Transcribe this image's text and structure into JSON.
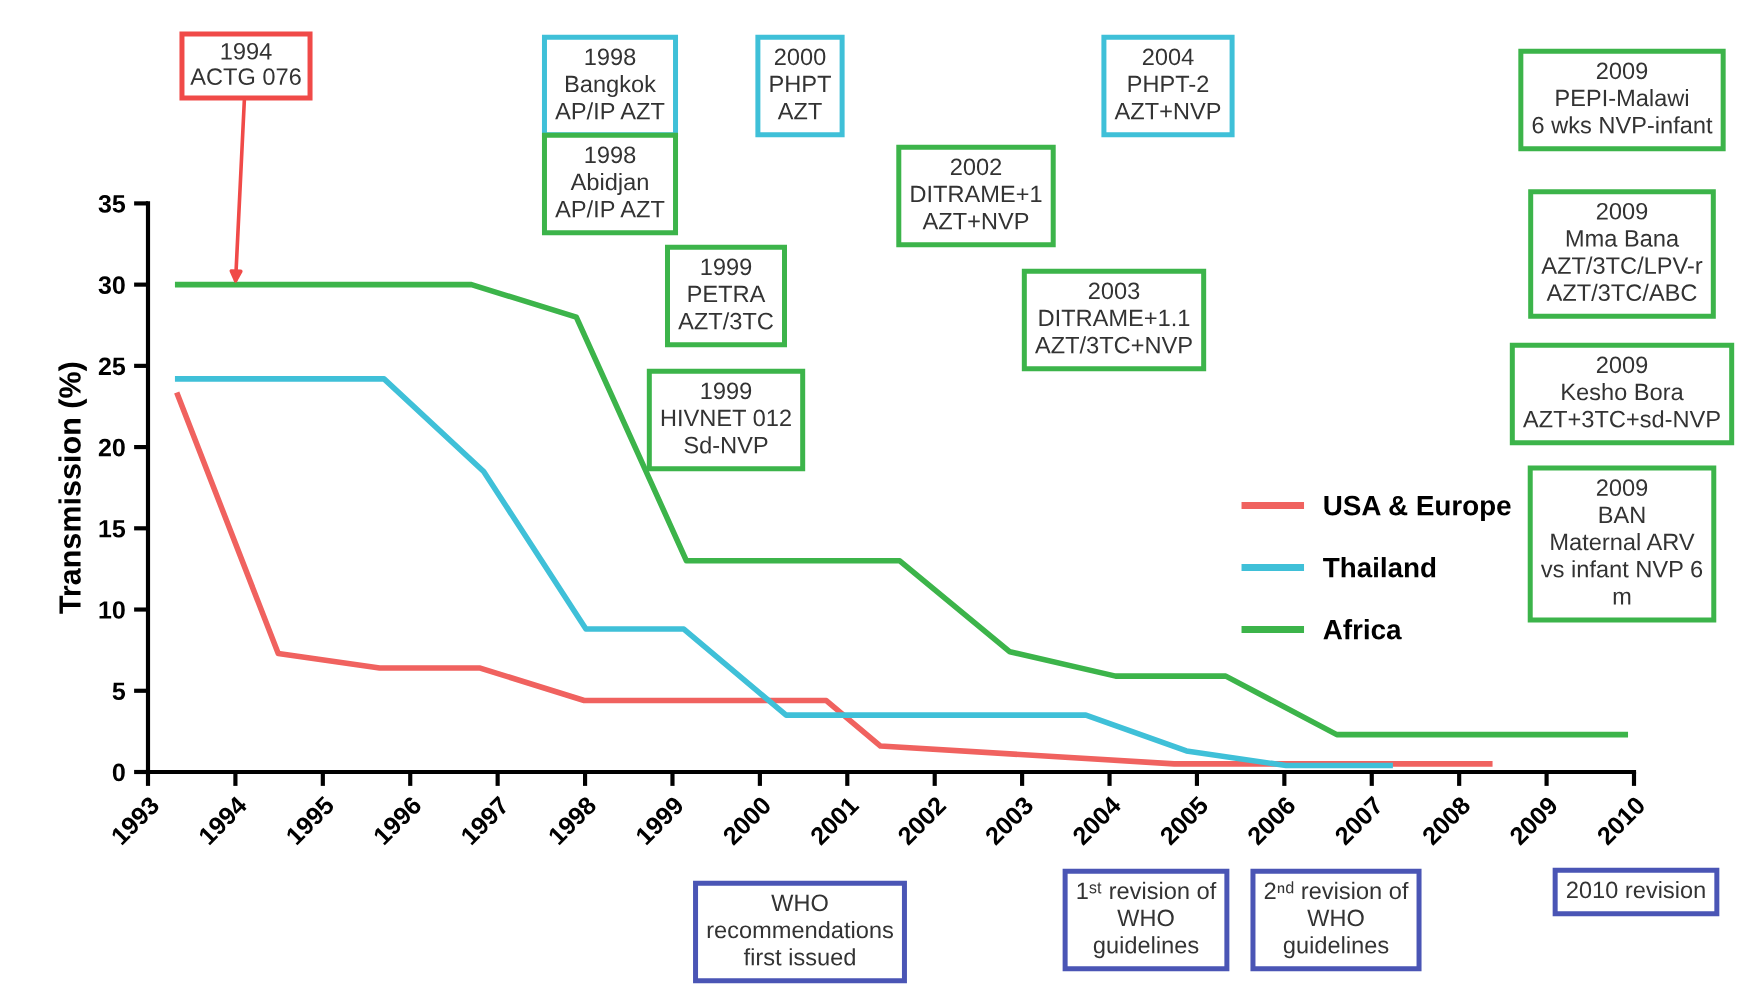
{
  "chart_data": {
    "type": "line",
    "ylabel": "Transmission (%)",
    "xlim": [
      1993,
      2010
    ],
    "xticks": [
      1993,
      1994,
      1995,
      1996,
      1997,
      1998,
      1999,
      2000,
      2001,
      2002,
      2003,
      2004,
      2005,
      2006,
      2007,
      2008,
      2009,
      2010
    ],
    "ylim": [
      0,
      35
    ],
    "yticks": [
      0,
      5,
      10,
      15,
      20,
      25,
      30,
      35
    ],
    "grid": false,
    "legend": "right",
    "marker": "none",
    "line_style": "solid",
    "series": [
      {
        "name": "USA & Europe",
        "color": "#f0625f",
        "x": [
          1993.34,
          1994.49,
          1995.65,
          1996.8,
          1997.99,
          2000.76,
          2001.38,
          2004.74,
          2008.35
        ],
        "values": [
          23.2,
          7.3,
          6.4,
          6.4,
          4.4,
          4.4,
          1.6,
          0.5,
          0.5
        ]
      },
      {
        "name": "Thailand",
        "color": "#3fc0d8",
        "x": [
          1993.34,
          1995.7,
          1996.84,
          1998.01,
          1999.13,
          2000.3,
          2003.73,
          2004.88,
          2006.02,
          2007.21
        ],
        "values": [
          24.2,
          24.2,
          18.5,
          8.8,
          8.8,
          3.5,
          3.5,
          1.3,
          0.4,
          0.4
        ]
      },
      {
        "name": "Africa",
        "color": "#3cb44a",
        "x": [
          1993.34,
          1996.7,
          1997.9,
          1999.16,
          2001.6,
          2002.86,
          2004.07,
          2005.33,
          2006.6,
          2009.9
        ],
        "values": [
          30,
          30,
          28,
          13,
          13,
          7.4,
          5.9,
          5.9,
          2.3,
          2.3
        ]
      }
    ],
    "annotations": [
      {
        "text": "1994\nACTG 076",
        "x": 1994,
        "y": 30
      },
      "1998\nBangkok\nAP/IP AZT",
      "2000\nPHPT\nAZT",
      "2004\nPHPT-2\nAZT+NVP",
      "1998\nAbidjan\nAP/IP AZT",
      "1999\nPETRA\nAZT/3TC",
      "1999\nHIVNET 012\nSd-NVP",
      "2002\nDITRAME+1\nAZT+NVP",
      "2003\nDITRAME+1.1\nAZT/3TC+NVP",
      "2009\nPEPI-Malawi\n6 wks NVP-infant",
      "2009\nMma Bana\nAZT/3TC/LPV-r\nAZT/3TC/ABC",
      "2009\nKesho Bora\nAZT+3TC+sd-NVP",
      "2009\nBAN\nMaternal ARV\nvs infant NVP 6\nm",
      "WHO\nrecommendations\nfirst issued",
      "1ˢᵗ revision of\nWHO\nguidelines",
      "2ⁿᵈ revision of\nWHO\nguidelines",
      "2010 revision"
    ]
  }
}
